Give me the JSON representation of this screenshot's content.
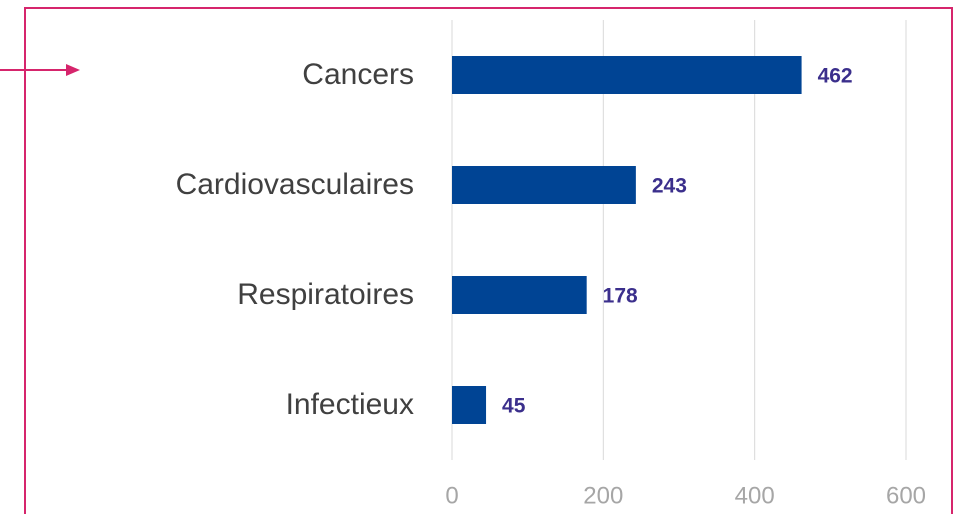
{
  "chart_data": {
    "type": "bar",
    "orientation": "horizontal",
    "categories": [
      "Cancers",
      "Cardiovasculaires",
      "Respiratoires",
      "Infectieux"
    ],
    "values": [
      462,
      243,
      178,
      45
    ],
    "color": "#004494",
    "xlim": [
      0,
      600
    ],
    "xticks": [
      0,
      200,
      400,
      600
    ],
    "grid": true
  }
}
